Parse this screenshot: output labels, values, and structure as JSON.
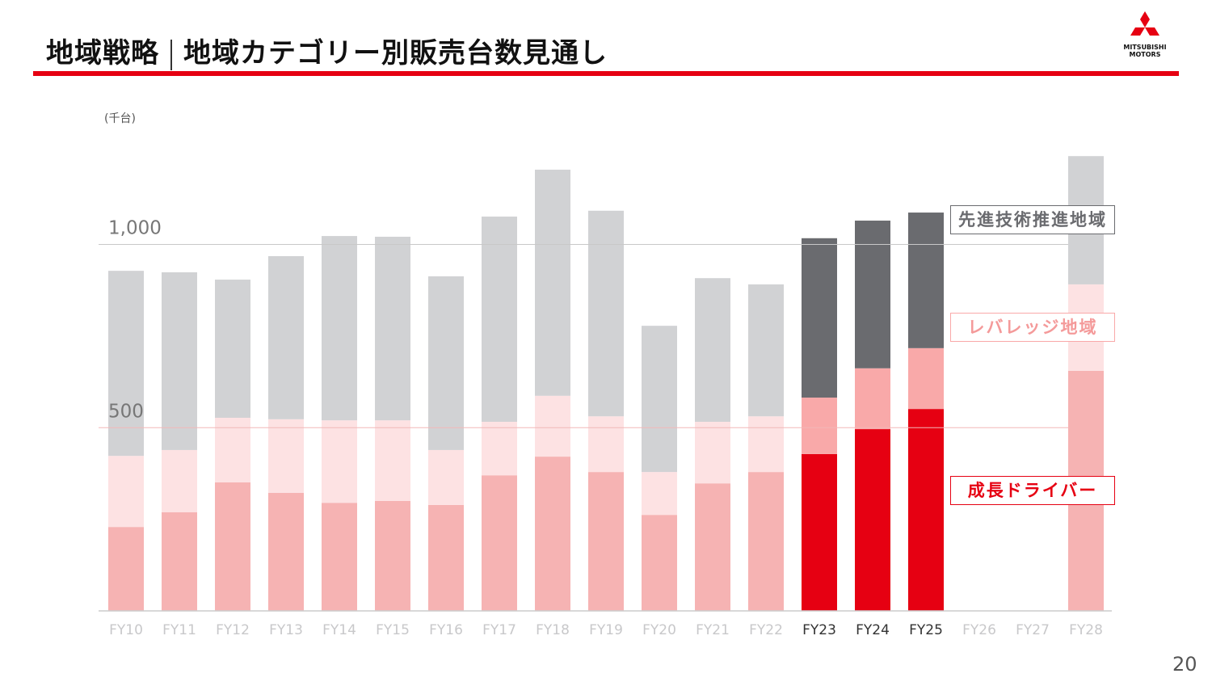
{
  "header": {
    "title_left": "地域戦略",
    "title_right": "地域カテゴリー別販売台数見通し",
    "logo_text": "MITSUBISHI MOTORS"
  },
  "page_number": "20",
  "colors": {
    "accent": "#e60012"
  },
  "chart_data": {
    "type": "bar",
    "stacked": true,
    "unit_label": "(千台)",
    "categories": [
      "FY10",
      "FY11",
      "FY12",
      "FY13",
      "FY14",
      "FY15",
      "FY16",
      "FY17",
      "FY18",
      "FY19",
      "FY20",
      "FY21",
      "FY22",
      "FY23",
      "FY24",
      "FY25",
      "FY26",
      "FY27",
      "FY28"
    ],
    "highlighted": [
      "FY23",
      "FY24",
      "FY25"
    ],
    "yticks": [
      {
        "value": 500,
        "label": "500"
      },
      {
        "value": 1000,
        "label": "1,000"
      }
    ],
    "ylim": [
      0,
      1250
    ],
    "series": [
      {
        "name": "成長ドライバー",
        "colors": {
          "faded": "#f6b3b3",
          "highlight": "#e60012"
        },
        "values": [
          229,
          269,
          351,
          322,
          295,
          300,
          289,
          370,
          421,
          379,
          262,
          348,
          379,
          428,
          496,
          551,
          null,
          null,
          655
        ]
      },
      {
        "name": "レバレッジ地域",
        "colors": {
          "faded": "#fde2e3",
          "highlight": "#f9a9a9"
        },
        "values": [
          194,
          170,
          176,
          201,
          225,
          220,
          150,
          146,
          166,
          152,
          117,
          168,
          152,
          154,
          166,
          166,
          null,
          null,
          236
        ]
      },
      {
        "name": "先進技術推進地域",
        "colors": {
          "faded": "#d1d2d4",
          "highlight": "#6a6b6f"
        },
        "values": [
          505,
          485,
          377,
          445,
          503,
          501,
          474,
          560,
          617,
          561,
          399,
          392,
          360,
          435,
          403,
          370,
          null,
          null,
          350
        ]
      }
    ]
  }
}
